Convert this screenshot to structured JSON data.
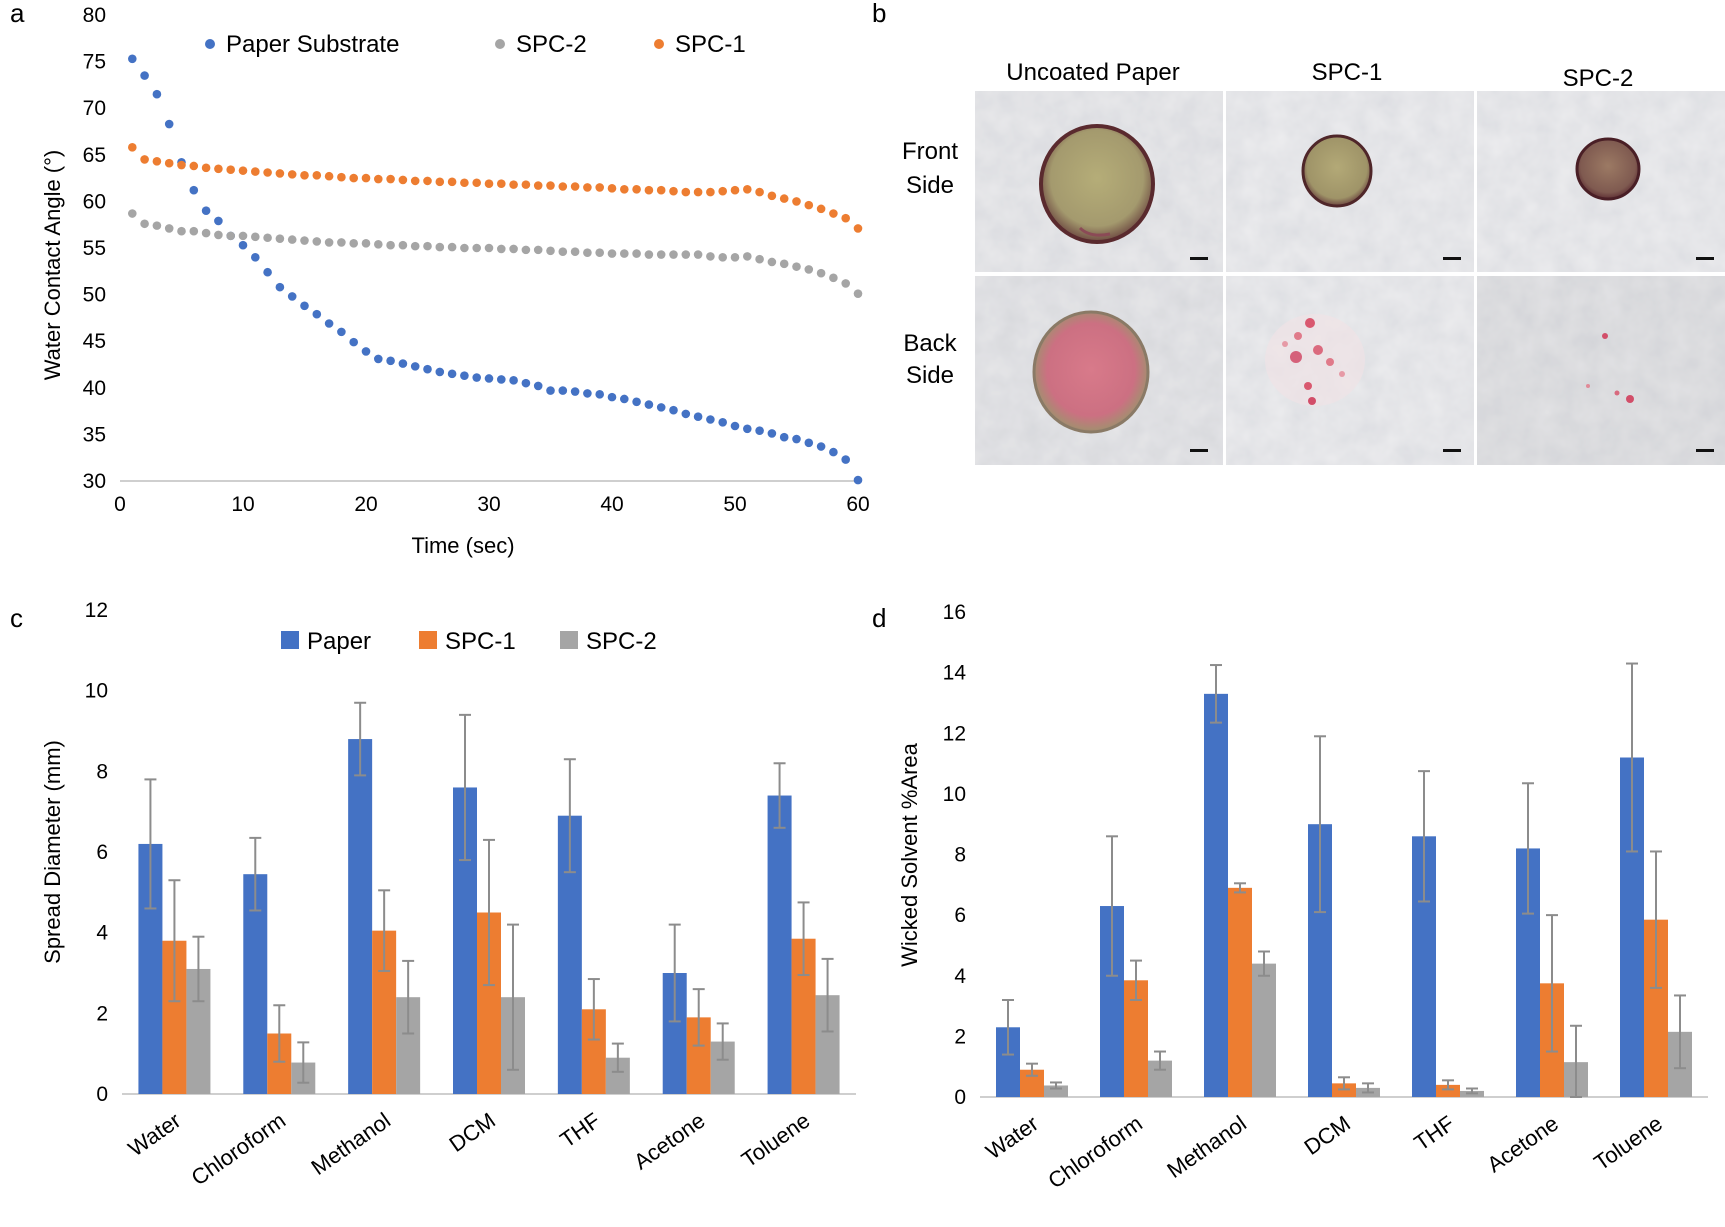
{
  "panel_letters": {
    "a": "a",
    "b": "b",
    "c": "c",
    "d": "d"
  },
  "colors": {
    "blue": "#4472c4",
    "orange": "#ed7d31",
    "gray": "#a5a5a5",
    "errbar": "#8c8c8c",
    "axis": "#bfbfbf"
  },
  "chart_data": [
    {
      "panel": "a",
      "type": "scatter",
      "title": "",
      "xlabel": "Time (sec)",
      "ylabel": "Water Contact Angle (°)",
      "xlim": [
        0,
        60
      ],
      "ylim": [
        30,
        80
      ],
      "xticks": [
        0,
        10,
        20,
        30,
        40,
        50,
        60
      ],
      "yticks": [
        30,
        35,
        40,
        45,
        50,
        55,
        60,
        65,
        70,
        75,
        80
      ],
      "legend": [
        "Paper Substrate",
        "SPC-2",
        "SPC-1"
      ],
      "series": [
        {
          "name": "Paper Substrate",
          "color": "#4472c4",
          "x": [
            1,
            2,
            3,
            4,
            5,
            6,
            7,
            8,
            9,
            10,
            11,
            12,
            13,
            14,
            15,
            16,
            17,
            18,
            19,
            20,
            21,
            22,
            23,
            24,
            25,
            26,
            27,
            28,
            29,
            30,
            31,
            32,
            33,
            34,
            35,
            36,
            37,
            38,
            39,
            40,
            41,
            42,
            43,
            44,
            45,
            46,
            47,
            48,
            49,
            50,
            51,
            52,
            53,
            54,
            55,
            56,
            57,
            58,
            59,
            60
          ],
          "y": [
            75.3,
            73.5,
            71.5,
            68.3,
            64.2,
            61.2,
            59.0,
            57.9,
            56.3,
            55.3,
            54.0,
            52.4,
            50.8,
            49.8,
            48.8,
            47.9,
            46.9,
            46.0,
            44.9,
            43.9,
            43.1,
            42.9,
            42.6,
            42.3,
            42.0,
            41.7,
            41.5,
            41.3,
            41.1,
            41.0,
            40.9,
            40.8,
            40.5,
            40.2,
            39.7,
            39.7,
            39.6,
            39.4,
            39.3,
            39.0,
            38.8,
            38.5,
            38.2,
            37.9,
            37.6,
            37.2,
            36.9,
            36.6,
            36.3,
            35.9,
            35.6,
            35.4,
            35.1,
            34.7,
            34.5,
            34.1,
            33.7,
            33.1,
            32.3,
            30.1
          ]
        },
        {
          "name": "SPC-2",
          "color": "#a5a5a5",
          "x": [
            1,
            2,
            3,
            4,
            5,
            6,
            7,
            8,
            9,
            10,
            11,
            12,
            13,
            14,
            15,
            16,
            17,
            18,
            19,
            20,
            21,
            22,
            23,
            24,
            25,
            26,
            27,
            28,
            29,
            30,
            31,
            32,
            33,
            34,
            35,
            36,
            37,
            38,
            39,
            40,
            41,
            42,
            43,
            44,
            45,
            46,
            47,
            48,
            49,
            50,
            51,
            52,
            53,
            54,
            55,
            56,
            57,
            58,
            59,
            60
          ],
          "y": [
            58.7,
            57.6,
            57.4,
            57.1,
            56.8,
            56.8,
            56.6,
            56.4,
            56.3,
            56.3,
            56.2,
            56.1,
            56.0,
            55.9,
            55.8,
            55.7,
            55.6,
            55.6,
            55.5,
            55.5,
            55.4,
            55.3,
            55.3,
            55.2,
            55.2,
            55.1,
            55.1,
            55.0,
            55.0,
            55.0,
            54.9,
            54.9,
            54.8,
            54.8,
            54.7,
            54.6,
            54.6,
            54.5,
            54.5,
            54.4,
            54.4,
            54.4,
            54.3,
            54.3,
            54.3,
            54.3,
            54.3,
            54.1,
            54.0,
            54.0,
            54.1,
            53.8,
            53.5,
            53.3,
            53.0,
            52.7,
            52.3,
            51.8,
            51.2,
            50.1
          ]
        },
        {
          "name": "SPC-1",
          "color": "#ed7d31",
          "x": [
            1,
            2,
            3,
            4,
            5,
            6,
            7,
            8,
            9,
            10,
            11,
            12,
            13,
            14,
            15,
            16,
            17,
            18,
            19,
            20,
            21,
            22,
            23,
            24,
            25,
            26,
            27,
            28,
            29,
            30,
            31,
            32,
            33,
            34,
            35,
            36,
            37,
            38,
            39,
            40,
            41,
            42,
            43,
            44,
            45,
            46,
            47,
            48,
            49,
            50,
            51,
            52,
            53,
            54,
            55,
            56,
            57,
            58,
            59,
            60
          ],
          "y": [
            65.8,
            64.5,
            64.3,
            64.1,
            63.9,
            63.8,
            63.6,
            63.5,
            63.4,
            63.3,
            63.2,
            63.1,
            63.0,
            62.9,
            62.8,
            62.8,
            62.7,
            62.6,
            62.5,
            62.5,
            62.4,
            62.4,
            62.3,
            62.2,
            62.2,
            62.1,
            62.1,
            62.0,
            62.0,
            61.9,
            61.9,
            61.8,
            61.8,
            61.7,
            61.7,
            61.6,
            61.6,
            61.5,
            61.5,
            61.4,
            61.3,
            61.3,
            61.2,
            61.2,
            61.1,
            61.0,
            61.0,
            61.0,
            61.1,
            61.2,
            61.3,
            61.0,
            60.6,
            60.3,
            60.0,
            59.6,
            59.2,
            58.7,
            58.2,
            57.1
          ]
        }
      ]
    },
    {
      "panel": "c",
      "type": "bar",
      "title": "",
      "xlabel": "",
      "ylabel": "Spread Diameter (mm)",
      "ylim": [
        0,
        12
      ],
      "yticks": [
        0,
        2,
        4,
        6,
        8,
        10,
        12
      ],
      "categories": [
        "Water",
        "Chloroform",
        "Methanol",
        "DCM",
        "THF",
        "Acetone",
        "Toluene"
      ],
      "legend": [
        "Paper",
        "SPC-1",
        "SPC-2"
      ],
      "series": [
        {
          "name": "Paper",
          "color": "#4472c4",
          "values": [
            6.2,
            5.45,
            8.8,
            7.6,
            6.9,
            3.0,
            7.4
          ],
          "errors": [
            1.6,
            0.9,
            0.9,
            1.8,
            1.4,
            1.2,
            0.8
          ]
        },
        {
          "name": "SPC-1",
          "color": "#ed7d31",
          "values": [
            3.8,
            1.5,
            4.05,
            4.5,
            2.1,
            1.9,
            3.85
          ],
          "errors": [
            1.5,
            0.7,
            1.0,
            1.8,
            0.75,
            0.7,
            0.9
          ]
        },
        {
          "name": "SPC-2",
          "color": "#a5a5a5",
          "values": [
            3.1,
            0.78,
            2.4,
            2.4,
            0.9,
            1.3,
            2.45
          ],
          "errors": [
            0.8,
            0.5,
            0.9,
            1.8,
            0.35,
            0.45,
            0.9
          ]
        }
      ]
    },
    {
      "panel": "d",
      "type": "bar",
      "title": "",
      "xlabel": "",
      "ylabel": "Wicked Solvent %Area",
      "ylim": [
        0,
        16
      ],
      "yticks": [
        0,
        2,
        4,
        6,
        8,
        10,
        12,
        14,
        16
      ],
      "categories": [
        "Water",
        "Chloroform",
        "Methanol",
        "DCM",
        "THF",
        "Acetone",
        "Toluene"
      ],
      "legend": [],
      "series": [
        {
          "name": "Paper",
          "color": "#4472c4",
          "values": [
            2.3,
            6.3,
            13.3,
            9.0,
            8.6,
            8.2,
            11.2
          ],
          "errors": [
            0.9,
            2.3,
            0.95,
            2.9,
            2.15,
            2.15,
            3.1
          ]
        },
        {
          "name": "SPC-1",
          "color": "#ed7d31",
          "values": [
            0.9,
            3.85,
            6.9,
            0.45,
            0.4,
            3.75,
            5.85
          ],
          "errors": [
            0.2,
            0.65,
            0.15,
            0.2,
            0.15,
            2.25,
            2.25
          ]
        },
        {
          "name": "SPC-2",
          "color": "#a5a5a5",
          "values": [
            0.38,
            1.2,
            4.4,
            0.3,
            0.2,
            1.15,
            2.15
          ],
          "errors": [
            0.1,
            0.3,
            0.4,
            0.15,
            0.08,
            1.2,
            1.2
          ]
        }
      ]
    }
  ],
  "panel_b": {
    "col_labels": [
      "Uncoated Paper",
      "SPC-1",
      "SPC-2"
    ],
    "row_labels": [
      {
        "line1": "Front",
        "line2": "Side"
      },
      {
        "line1": "Back",
        "line2": "Side"
      }
    ]
  }
}
